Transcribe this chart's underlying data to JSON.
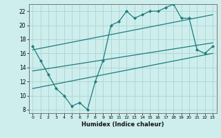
{
  "xlabel": "Humidex (Indice chaleur)",
  "x_ticks": [
    0,
    1,
    2,
    3,
    4,
    5,
    6,
    7,
    8,
    9,
    10,
    11,
    12,
    13,
    14,
    15,
    16,
    17,
    18,
    19,
    20,
    21,
    22,
    23
  ],
  "xlim": [
    -0.5,
    23.5
  ],
  "ylim": [
    7.5,
    23.0
  ],
  "y_ticks": [
    8,
    10,
    12,
    14,
    16,
    18,
    20,
    22
  ],
  "bg_color": "#cdeeed",
  "grid_color": "#b0d8d5",
  "line_color": "#1e7b7b",
  "line1_x": [
    0,
    1,
    2,
    3,
    4,
    5,
    6,
    7,
    8,
    9,
    10,
    11,
    12,
    13,
    14,
    15,
    16,
    17,
    18,
    19,
    20,
    21,
    22,
    23
  ],
  "line1_y": [
    17.0,
    15.0,
    13.0,
    11.0,
    10.0,
    8.5,
    9.0,
    8.0,
    12.0,
    15.0,
    20.0,
    20.5,
    22.0,
    21.0,
    21.5,
    22.0,
    22.0,
    22.5,
    23.0,
    21.0,
    21.0,
    16.5,
    16.0,
    17.0
  ],
  "line2_x": [
    0,
    23
  ],
  "line2_y": [
    16.5,
    21.5
  ],
  "line3_x": [
    0,
    23
  ],
  "line3_y": [
    13.5,
    17.5
  ],
  "line4_x": [
    0,
    23
  ],
  "line4_y": [
    11.0,
    16.0
  ]
}
